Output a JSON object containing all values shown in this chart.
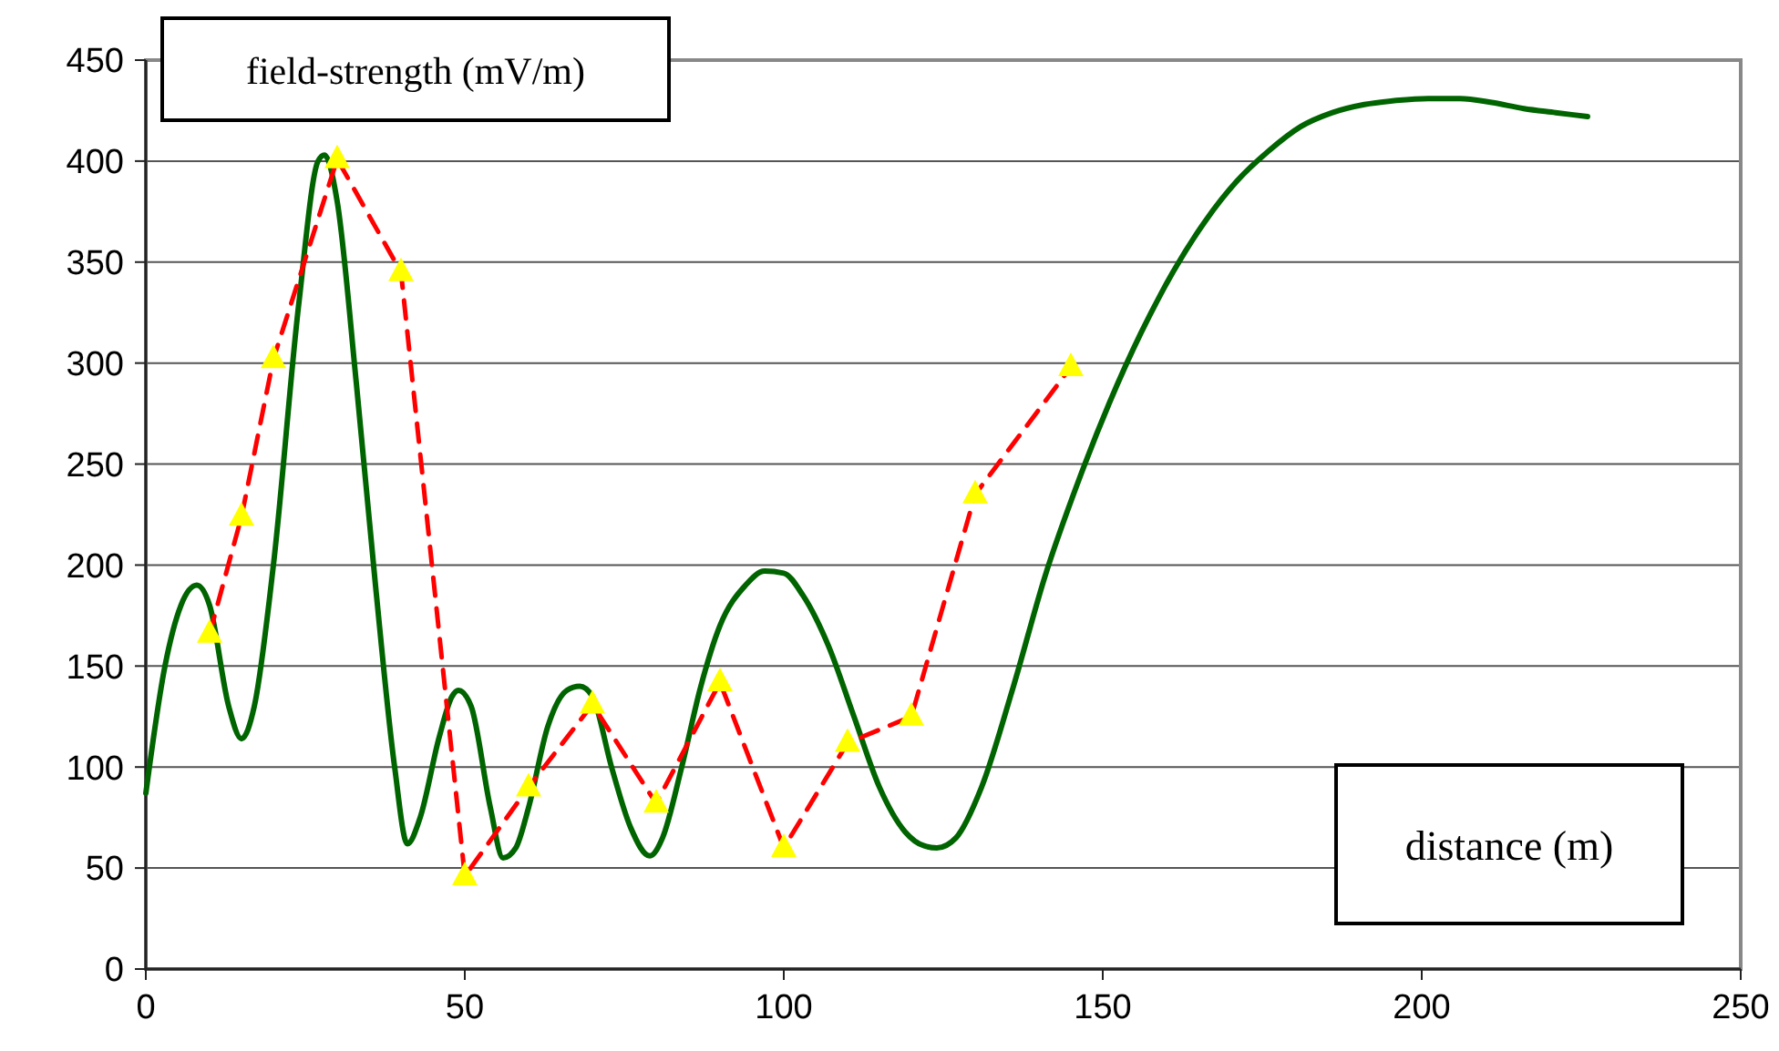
{
  "chart_data": {
    "type": "line",
    "ylabel": "field-strength (mV/m)",
    "xlabel": "distance (m)",
    "xlim": [
      0,
      250
    ],
    "xticks": [
      0,
      50,
      100,
      150,
      200,
      250
    ],
    "ylim": [
      0,
      450
    ],
    "yticks": [
      0,
      50,
      100,
      150,
      200,
      250,
      300,
      350,
      400,
      450
    ],
    "grid": "y",
    "series": [
      {
        "color": "#006400",
        "line_style": "solid",
        "marker": "none",
        "x": [
          0,
          3,
          8,
          10,
          13,
          15,
          17,
          20,
          24,
          27,
          28,
          30,
          33,
          36,
          39,
          41,
          43,
          46,
          48,
          49,
          51,
          54,
          56,
          58,
          60,
          63,
          66,
          68,
          70,
          73,
          76,
          79,
          81,
          84,
          87,
          90,
          94,
          97,
          100,
          103,
          107,
          111,
          115,
          119,
          122,
          124,
          127,
          131,
          136,
          141,
          146,
          151,
          156,
          161,
          166,
          171,
          176,
          181,
          186,
          191,
          196,
          201,
          206,
          211,
          216,
          221,
          226
        ],
        "values": [
          87,
          150,
          190,
          180,
          130,
          114,
          130,
          200,
          330,
          400,
          403,
          380,
          290,
          190,
          100,
          62,
          75,
          115,
          135,
          138,
          130,
          80,
          55,
          60,
          80,
          120,
          138,
          140,
          135,
          100,
          70,
          56,
          65,
          100,
          140,
          170,
          190,
          197,
          196,
          185,
          160,
          125,
          90,
          68,
          61,
          60,
          65,
          90,
          140,
          195,
          240,
          280,
          315,
          345,
          370,
          390,
          405,
          417,
          424,
          428,
          430,
          431,
          431,
          429,
          426,
          424,
          422
        ]
      },
      {
        "color": "#ff0000",
        "line_style": "dashed",
        "marker": "triangle",
        "x": [
          10,
          15,
          20,
          30,
          40,
          50,
          60,
          70,
          80,
          90,
          100,
          110,
          120,
          130,
          145
        ],
        "values": [
          166,
          224,
          302,
          401,
          345,
          46,
          90,
          131,
          82,
          142,
          60,
          112,
          125,
          235,
          298
        ]
      }
    ]
  }
}
